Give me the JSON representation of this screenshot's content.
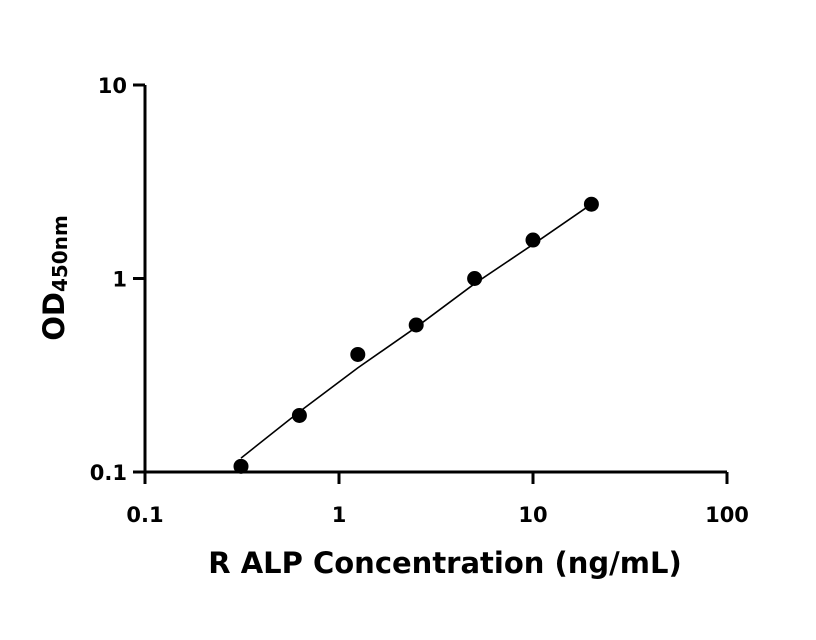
{
  "chart_data": {
    "type": "scatter",
    "xlabel": "R ALP Concentration (ng/mL)",
    "ylabel_main": "OD",
    "ylabel_sub": "450nm",
    "x_scale": "log",
    "y_scale": "log",
    "xlim": [
      0.1,
      100
    ],
    "ylim": [
      0.1,
      10
    ],
    "x_ticks": [
      "0.1",
      "1",
      "10",
      "100"
    ],
    "y_ticks": [
      "0.1",
      "1",
      "10"
    ],
    "grid": false,
    "series": [
      {
        "x": [
          0.3125,
          0.625,
          1.25,
          2.5,
          5,
          10,
          20
        ],
        "y": [
          0.107,
          0.196,
          0.405,
          0.575,
          1.0,
          1.58,
          2.42
        ]
      }
    ],
    "fit_curve": {
      "x": [
        0.3125,
        0.625,
        1.25,
        2.5,
        5,
        10,
        20
      ],
      "y": [
        0.118,
        0.205,
        0.345,
        0.56,
        0.94,
        1.5,
        2.42
      ]
    }
  }
}
